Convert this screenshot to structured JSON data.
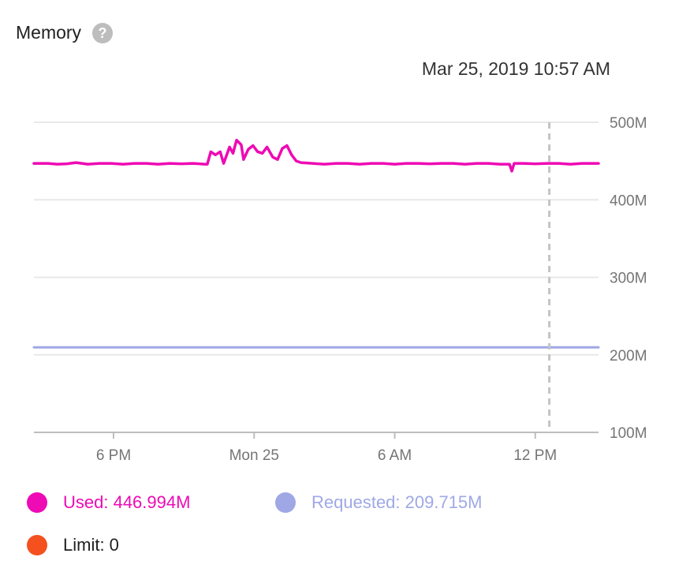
{
  "title": "Memory",
  "help_icon": "help-circle-icon",
  "timestamp": "Mar 25, 2019 10:57 AM",
  "chart_data": {
    "type": "line",
    "y_ticks": [
      "500M",
      "400M",
      "300M",
      "200M",
      "100M"
    ],
    "y_tick_values": [
      500,
      400,
      300,
      200,
      100
    ],
    "ylim": [
      100,
      500
    ],
    "y_unit": "M",
    "x_ticks": [
      "6 PM",
      "Mon 25",
      "6 AM",
      "12 PM"
    ],
    "x_tick_hours": [
      18,
      24,
      30,
      36
    ],
    "x_range_hours": [
      14.6,
      38.7
    ],
    "cursor_hour": 36.6,
    "grid": true,
    "series": [
      {
        "name": "Used",
        "color": "#ee0ab4",
        "points": [
          [
            14.6,
            447
          ],
          [
            15.2,
            447
          ],
          [
            15.6,
            446
          ],
          [
            16.0,
            446.5
          ],
          [
            16.4,
            448
          ],
          [
            16.9,
            446
          ],
          [
            17.4,
            447
          ],
          [
            17.9,
            447
          ],
          [
            18.4,
            446
          ],
          [
            18.9,
            447
          ],
          [
            19.4,
            447
          ],
          [
            19.9,
            446
          ],
          [
            20.4,
            447
          ],
          [
            20.9,
            446.5
          ],
          [
            21.4,
            447
          ],
          [
            21.9,
            446
          ],
          [
            22.0,
            446
          ],
          [
            22.15,
            462
          ],
          [
            22.35,
            458
          ],
          [
            22.55,
            462
          ],
          [
            22.7,
            447
          ],
          [
            22.95,
            468
          ],
          [
            23.1,
            460
          ],
          [
            23.25,
            477
          ],
          [
            23.45,
            471
          ],
          [
            23.55,
            452
          ],
          [
            23.75,
            465
          ],
          [
            23.95,
            470
          ],
          [
            24.15,
            462
          ],
          [
            24.35,
            460
          ],
          [
            24.55,
            468
          ],
          [
            24.8,
            455
          ],
          [
            25.0,
            452
          ],
          [
            25.2,
            466
          ],
          [
            25.4,
            470
          ],
          [
            25.6,
            458
          ],
          [
            25.8,
            450
          ],
          [
            26.0,
            448
          ],
          [
            26.5,
            447
          ],
          [
            27.0,
            446
          ],
          [
            27.5,
            447
          ],
          [
            28.0,
            447
          ],
          [
            28.5,
            446
          ],
          [
            29.0,
            447
          ],
          [
            29.5,
            447
          ],
          [
            30.0,
            446
          ],
          [
            30.5,
            447
          ],
          [
            31.0,
            447
          ],
          [
            31.5,
            446.5
          ],
          [
            32.0,
            447
          ],
          [
            32.5,
            447
          ],
          [
            33.0,
            446
          ],
          [
            33.5,
            447
          ],
          [
            34.0,
            447
          ],
          [
            34.5,
            446
          ],
          [
            34.9,
            446
          ],
          [
            35.0,
            437
          ],
          [
            35.1,
            447
          ],
          [
            35.5,
            447
          ],
          [
            36.0,
            446.5
          ],
          [
            36.5,
            447
          ],
          [
            37.0,
            447
          ],
          [
            37.5,
            446
          ],
          [
            38.0,
            447
          ],
          [
            38.7,
            447
          ]
        ]
      },
      {
        "name": "Requested",
        "color": "#9fa8e5",
        "points": [
          [
            14.6,
            209.715
          ],
          [
            38.7,
            209.715
          ]
        ]
      },
      {
        "name": "Limit",
        "color": "#f4511e",
        "points": []
      }
    ]
  },
  "legend": [
    {
      "label": "Used: 446.994M",
      "color": "#ee0ab4"
    },
    {
      "label": "Requested: 209.715M",
      "color": "#9fa8e5"
    },
    {
      "label": "Limit: 0",
      "color": "#f4511e"
    }
  ]
}
